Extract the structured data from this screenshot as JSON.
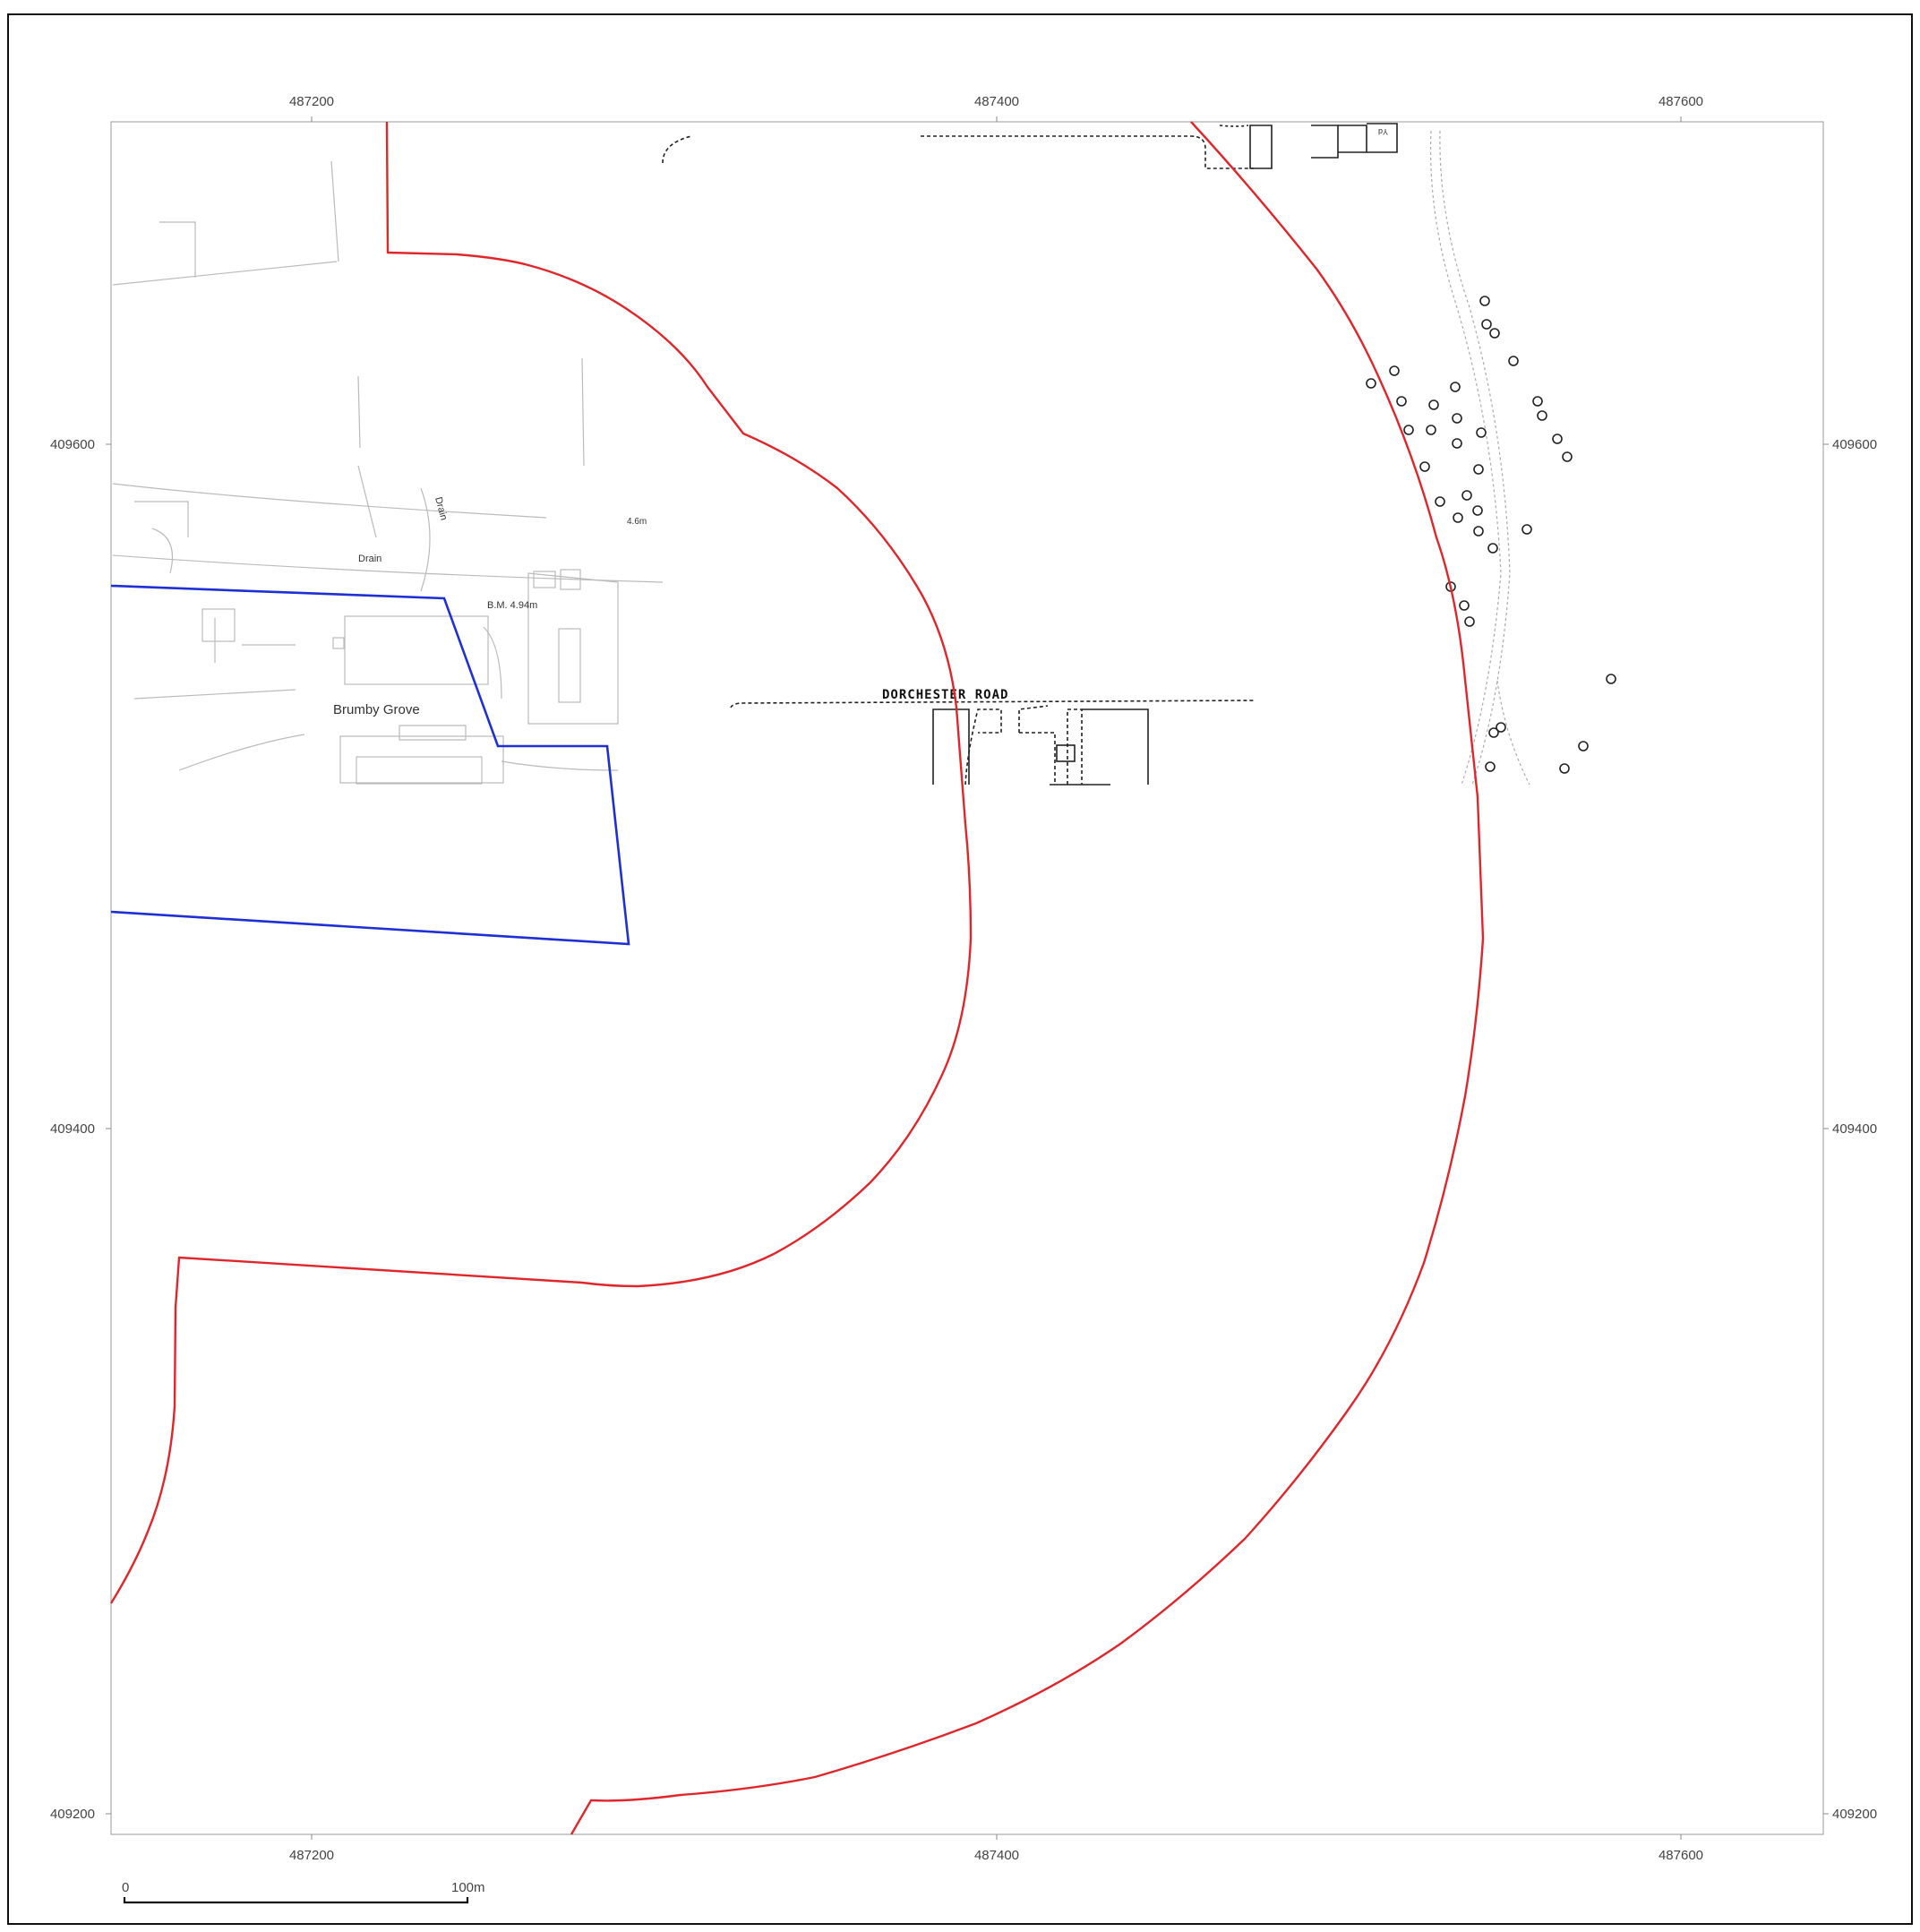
{
  "grid": {
    "top_x_labels": [
      "487200",
      "487400",
      "487600"
    ],
    "bottom_x_labels": [
      "487200",
      "487400",
      "487600"
    ],
    "left_y_labels": [
      "409600",
      "409400",
      "409200"
    ],
    "right_y_labels": [
      "409600",
      "409400",
      "409200"
    ]
  },
  "map_labels": {
    "road": "DORCHESTER   ROAD",
    "place": "Brumby Grove",
    "drain_1": "Drain",
    "drain_2": "Drain",
    "benchmark": "B.M. 4.94m",
    "spot_height": "4.6m",
    "building_tag": "Yd"
  },
  "scale_bar": {
    "start_label": "0",
    "end_label": "100m"
  },
  "colors": {
    "buffer_line": "#e0262b",
    "site_boundary": "#1f2fd6",
    "base_map": "#222222",
    "frame": "#111111"
  }
}
